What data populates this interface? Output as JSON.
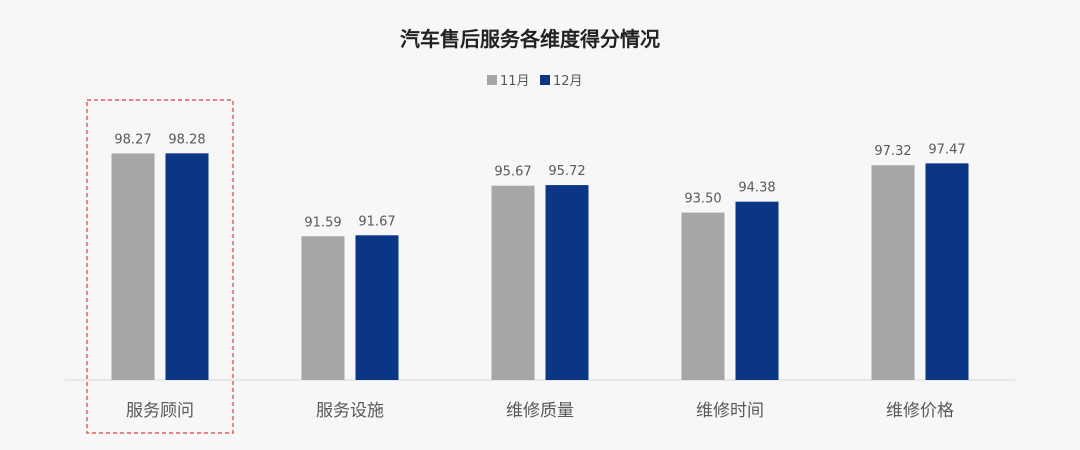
{
  "chart_data": {
    "type": "bar",
    "title": "汽车售后服务各维度得分情况",
    "categories": [
      "服务顾问",
      "服务设施",
      "维修质量",
      "维修时间",
      "维修价格"
    ],
    "series": [
      {
        "name": "11月",
        "values": [
          98.27,
          91.59,
          95.67,
          93.5,
          97.32
        ],
        "labels": [
          "98.27",
          "91.59",
          "95.67",
          "93.50",
          "97.32"
        ],
        "color": "#a6a6a6"
      },
      {
        "name": "12月",
        "values": [
          98.28,
          91.67,
          95.72,
          94.38,
          97.47
        ],
        "labels": [
          "98.28",
          "91.67",
          "95.72",
          "94.38",
          "97.47"
        ],
        "color": "#0b3585"
      }
    ],
    "ylim": [
      80,
      100
    ],
    "grid": false,
    "legend": "top",
    "highlight_category": "服务顾问",
    "highlight_color": "#e03c3c"
  }
}
